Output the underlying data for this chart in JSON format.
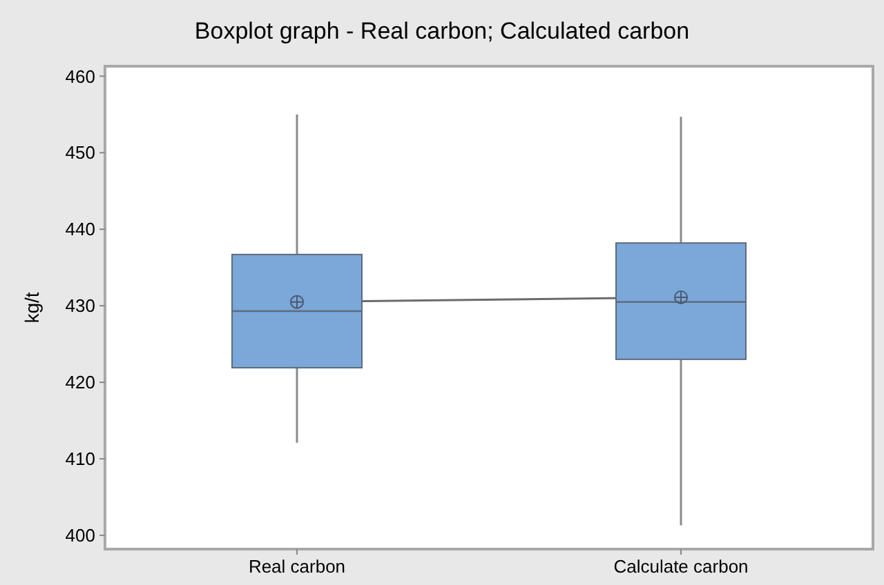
{
  "chart_data": {
    "type": "box",
    "title": "Boxplot graph - Real carbon; Calculated carbon",
    "ylabel": "kg/t",
    "categories": [
      "Real carbon",
      "Calculate carbon"
    ],
    "color": "#7ba7d9",
    "ylim": [
      398.2,
      461.3
    ],
    "yticks": [
      400,
      410,
      420,
      430,
      440,
      450,
      460
    ],
    "grid": false,
    "boxes": [
      {
        "low": 412.1,
        "q1": 421.9,
        "median": 429.3,
        "q3": 436.7,
        "high": 455.0,
        "mean": 430.5
      },
      {
        "low": 401.3,
        "q1": 423.0,
        "median": 430.5,
        "q3": 438.2,
        "high": 454.7,
        "mean": 431.1
      }
    ],
    "series": [
      {
        "type": "line",
        "color": "#6b6b6b",
        "values": [
          430.5,
          431.1
        ]
      }
    ]
  }
}
